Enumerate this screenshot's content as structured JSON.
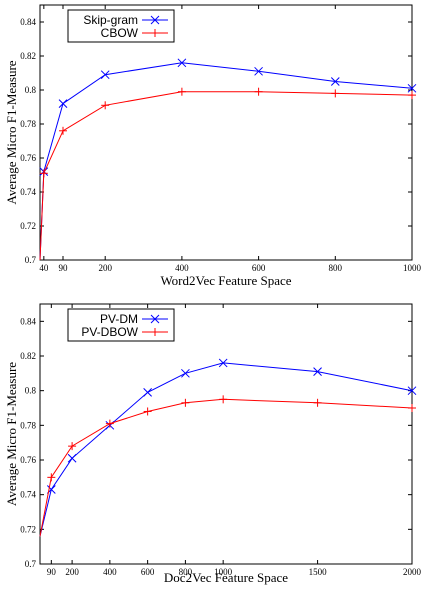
{
  "chart_data": [
    {
      "type": "line",
      "xlabel": "Word2Vec Feature Space",
      "ylabel": "Average Micro F1-Measure",
      "x": [
        40,
        90,
        200,
        400,
        600,
        800,
        1000
      ],
      "xticks": [
        "40",
        "90",
        "200",
        "400",
        "600",
        "800",
        "1000"
      ],
      "xlim": [
        30,
        1000
      ],
      "ylim": [
        0.7,
        0.85
      ],
      "yticks": [
        "0.7",
        "0.72",
        "0.74",
        "0.76",
        "0.78",
        "0.8",
        "0.82",
        "0.84"
      ],
      "legend": "top-left",
      "grid": false,
      "series": [
        {
          "name": "Skip-gram",
          "color": "#0000ff",
          "marker": "x",
          "values": [
            0.752,
            0.792,
            0.809,
            0.816,
            0.811,
            0.805,
            0.801
          ]
        },
        {
          "name": "CBOW",
          "color": "#ff0000",
          "marker": "plus",
          "values": [
            0.751,
            0.776,
            0.791,
            0.799,
            0.799,
            0.798,
            0.797
          ]
        }
      ],
      "line_start": [
        30,
        0.7
      ]
    },
    {
      "type": "line",
      "xlabel": "Doc2Vec Feature Space",
      "ylabel": "Average Micro F1-Measure",
      "x": [
        90,
        200,
        400,
        600,
        800,
        1000,
        1500,
        2000
      ],
      "xticks": [
        "90",
        "200",
        "400",
        "600",
        "800",
        "1000",
        "1500",
        "2000"
      ],
      "xlim": [
        30,
        2000
      ],
      "ylim": [
        0.7,
        0.85
      ],
      "yticks": [
        "0.7",
        "0.72",
        "0.74",
        "0.76",
        "0.78",
        "0.8",
        "0.82",
        "0.84"
      ],
      "legend": "top-left",
      "grid": false,
      "series": [
        {
          "name": "PV-DM",
          "color": "#0000ff",
          "marker": "x",
          "values": [
            0.743,
            0.761,
            0.78,
            0.799,
            0.81,
            0.816,
            0.811,
            0.8
          ]
        },
        {
          "name": "PV-DBOW",
          "color": "#ff0000",
          "marker": "plus",
          "values": [
            0.75,
            0.768,
            0.781,
            0.788,
            0.793,
            0.795,
            0.793,
            0.79
          ]
        }
      ],
      "line_start": [
        30,
        0.716
      ]
    }
  ]
}
